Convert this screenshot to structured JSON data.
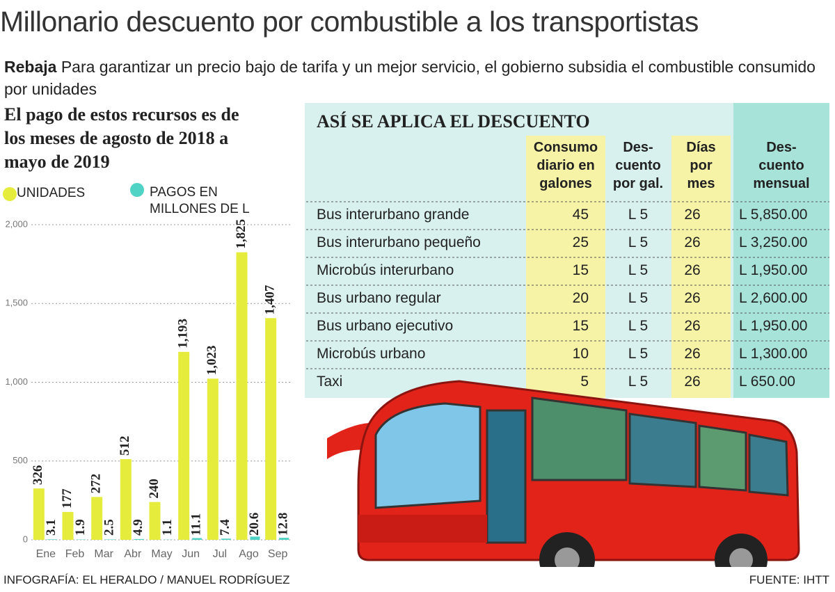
{
  "title": "Millonario descuento por combustible a los transportistas",
  "intro": {
    "lead": "Rebaja",
    "text": "Para garantizar un precio bajo de tarifa y un mejor servicio, el gobierno subsidia el combustible consumido por unidades"
  },
  "chart_data": {
    "type": "bar",
    "subtitle": "El pago de estos recursos es de los meses de agosto de 2018 a mayo de 2019",
    "categories": [
      "Ene",
      "Feb",
      "Mar",
      "Abr",
      "May",
      "Jun",
      "Jul",
      "Ago",
      "Sep"
    ],
    "series": [
      {
        "name": "UNIDADES",
        "color": "#e6ec3c",
        "values": [
          326,
          177,
          272,
          512,
          240,
          1193,
          1023,
          1825,
          1407
        ],
        "value_labels": [
          "326",
          "177",
          "272",
          "512",
          "240",
          "1,193",
          "1,023",
          "1,825",
          "1,407"
        ]
      },
      {
        "name": "PAGOS EN MILLONES DE L",
        "color": "#4fd3c4",
        "values": [
          3.1,
          1.9,
          2.5,
          4.9,
          1.1,
          11.1,
          7.4,
          20.6,
          12.8
        ]
      }
    ],
    "ylim": [
      0,
      2000
    ],
    "yticks": [
      0,
      500,
      {
        "value": 1000,
        "label": "1,000"
      },
      {
        "value": 1500,
        "label": "1,500"
      },
      {
        "value": 2000,
        "label": "2,000"
      }
    ],
    "grid": true
  },
  "table": {
    "title": "ASÍ SE APLICA EL DESCUENTO",
    "headers": [
      "Consumo\ndiario en\ngalones",
      "Des-\ncuento\npor gal.",
      "Días\npor\nmes",
      "Des-\ncuento\nmensual"
    ],
    "rows": [
      [
        "Bus interurbano grande",
        "45",
        "L 5",
        "26",
        "L 5,850.00"
      ],
      [
        "Bus interurbano pequeño",
        "25",
        "L 5",
        "26",
        "L 3,250.00"
      ],
      [
        "Microbús interurbano",
        "15",
        "L 5",
        "26",
        "L 1,950.00"
      ],
      [
        "Bus urbano regular",
        "20",
        "L 5",
        "26",
        "L 2,600.00"
      ],
      [
        "Bus urbano ejecutivo",
        "15",
        "L 5",
        "26",
        "L 1,950.00"
      ],
      [
        "Microbús urbano",
        "10",
        "L 5",
        "26",
        "L 1,300.00"
      ],
      [
        "Taxi",
        "5",
        "L 5",
        "26",
        "L 650.00"
      ]
    ]
  },
  "footer": {
    "credit": "INFOGRAFÍA: EL HERALDO / MANUEL RODRÍGUEZ",
    "source": "FUENTE: IHTT"
  }
}
